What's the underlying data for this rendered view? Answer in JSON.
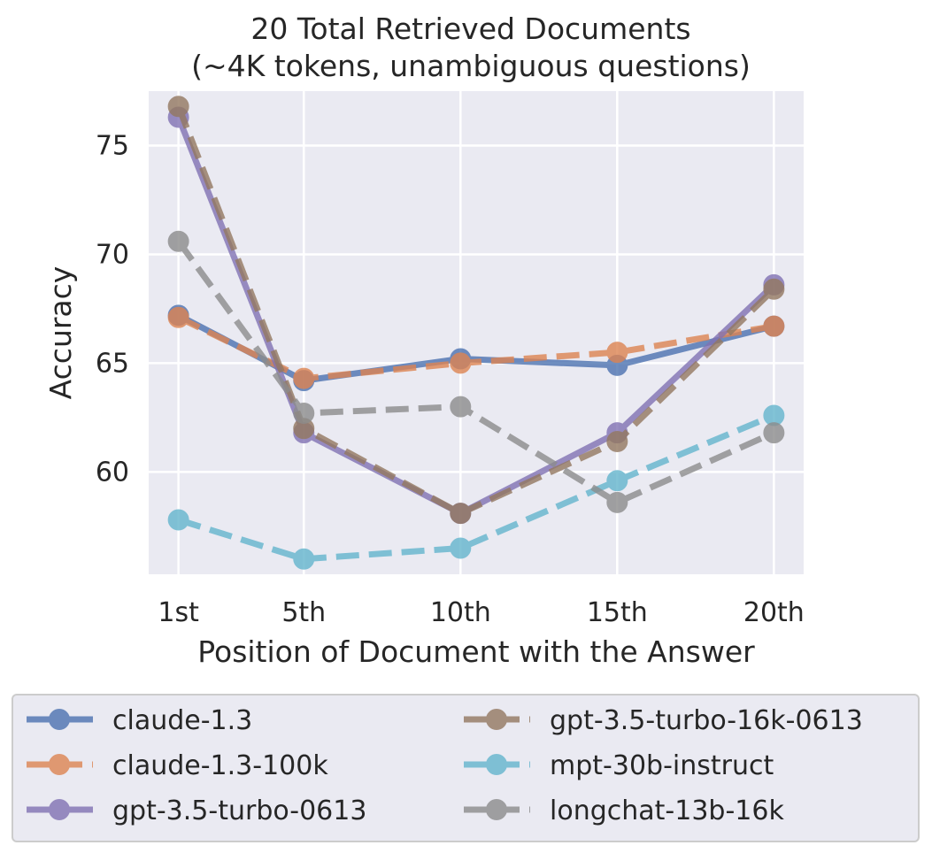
{
  "chart_data": {
    "type": "line",
    "title": "20 Total Retrieved Documents",
    "subtitle": "(~4K tokens, unambiguous questions)",
    "xlabel": "Position of Document with the Answer",
    "ylabel": "Accuracy",
    "categories": [
      "1st",
      "5th",
      "10th",
      "15th",
      "20th"
    ],
    "x": [
      1,
      5,
      10,
      15,
      20
    ],
    "ylim": [
      55.3,
      77.5
    ],
    "yticks": [
      60,
      65,
      70,
      75
    ],
    "grid": true,
    "legend_placement": "bottom",
    "series": [
      {
        "name": "claude-1.3",
        "values": [
          67.2,
          64.2,
          65.2,
          64.9,
          66.7
        ],
        "color": "#4c72b0",
        "dashed": false
      },
      {
        "name": "claude-1.3-100k",
        "values": [
          67.1,
          64.3,
          65.0,
          65.5,
          66.7
        ],
        "color": "#dd8452",
        "dashed": true
      },
      {
        "name": "gpt-3.5-turbo-0613",
        "values": [
          76.3,
          61.8,
          58.1,
          61.8,
          68.6
        ],
        "color": "#8172b3",
        "dashed": false
      },
      {
        "name": "gpt-3.5-turbo-16k-0613",
        "values": [
          76.8,
          62.0,
          58.1,
          61.4,
          68.4
        ],
        "color": "#937860",
        "dashed": true
      },
      {
        "name": "mpt-30b-instruct",
        "values": [
          57.8,
          56.0,
          56.5,
          59.6,
          62.6
        ],
        "color": "#64b5cd",
        "dashed": true
      },
      {
        "name": "longchat-13b-16k",
        "values": [
          70.6,
          62.7,
          63.0,
          58.6,
          61.8
        ],
        "color": "#8c8c8c",
        "dashed": true
      }
    ]
  }
}
